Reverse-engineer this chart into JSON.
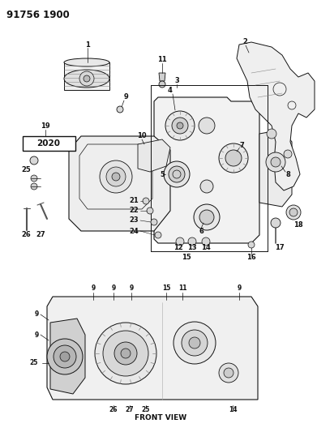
{
  "title": "91756 1900",
  "background_color": "#ffffff",
  "fig_width": 3.91,
  "fig_height": 5.33,
  "dpi": 100,
  "text_color": "#111111",
  "line_color": "#111111",
  "front_view_label": "FRONT VIEW"
}
